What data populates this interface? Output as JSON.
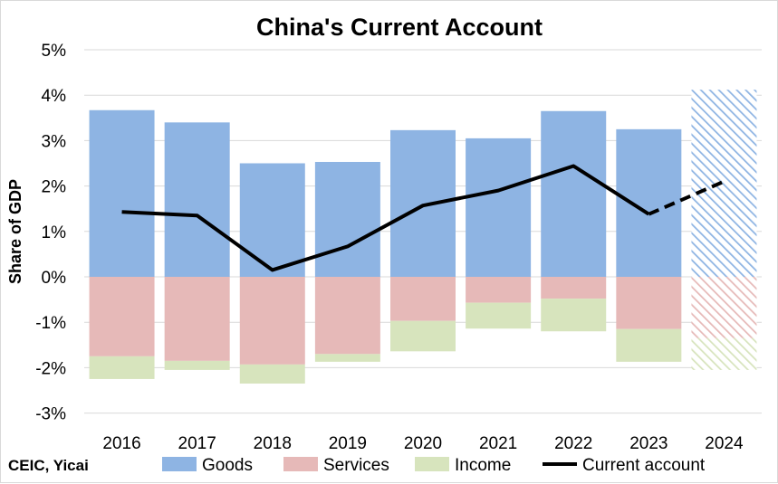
{
  "chart_data": {
    "type": "bar",
    "title": "China's Current Account",
    "ylabel": "Share of GDP",
    "source": "CEIC, Yicai",
    "categories": [
      "2016",
      "2017",
      "2018",
      "2019",
      "2020",
      "2021",
      "2022",
      "2023",
      "2024"
    ],
    "ylim": [
      -3,
      5
    ],
    "y_ticks": [
      "5%",
      "4%",
      "3%",
      "2%",
      "1%",
      "0%",
      "-1%",
      "-2%",
      "-3%"
    ],
    "y_tick_values": [
      5,
      4,
      3,
      2,
      1,
      0,
      -1,
      -2,
      -3
    ],
    "grid": true,
    "legend_position": "bottom",
    "stacked": true,
    "forecast_category": "2024",
    "series": [
      {
        "name": "Goods",
        "kind": "bar",
        "color": "#8eb4e3",
        "values": [
          3.67,
          3.4,
          2.5,
          2.53,
          3.23,
          3.05,
          3.65,
          3.25,
          4.12
        ]
      },
      {
        "name": "Services",
        "kind": "bar",
        "color": "#e6b9b8",
        "values": [
          -1.75,
          -1.85,
          -1.93,
          -1.7,
          -0.97,
          -0.57,
          -0.48,
          -1.15,
          -1.35
        ]
      },
      {
        "name": "Income",
        "kind": "bar",
        "color": "#d7e4bd",
        "values": [
          -0.5,
          -0.2,
          -0.42,
          -0.17,
          -0.67,
          -0.57,
          -0.72,
          -0.72,
          -0.7
        ]
      },
      {
        "name": "Current account",
        "kind": "line",
        "color": "#000000",
        "values": [
          1.43,
          1.35,
          0.15,
          0.67,
          1.57,
          1.9,
          2.44,
          1.38,
          2.1
        ]
      }
    ]
  }
}
